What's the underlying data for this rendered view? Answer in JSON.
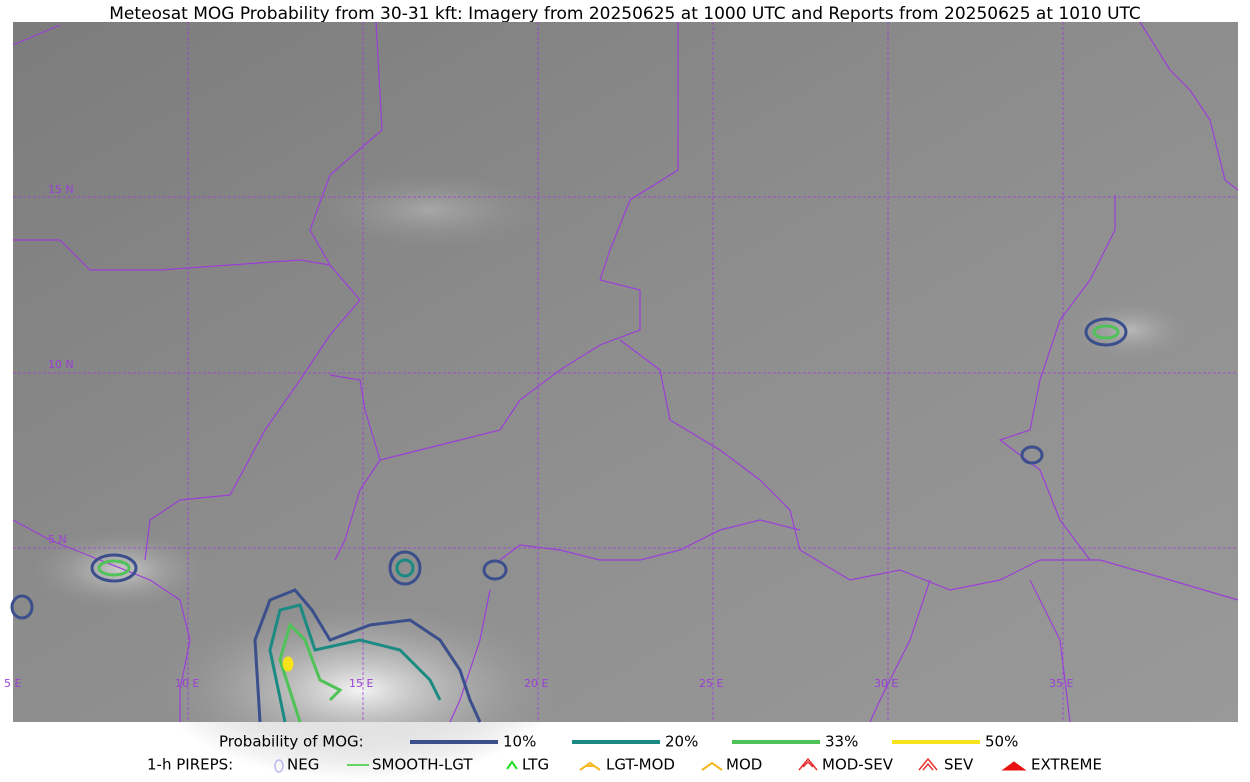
{
  "title": "Meteosat MOG Probability from 30-31 kft: Imagery from 20250625 at 1000 UTC and Reports from 20250625 at 1010 UTC",
  "map": {
    "lat_labels": [
      "15 N",
      "10 N",
      "5 N"
    ],
    "lon_labels": [
      "5 E",
      "10 E",
      "15 E",
      "20 E",
      "25 E",
      "30 E",
      "35 E"
    ]
  },
  "legend": {
    "probability": {
      "title": "Probability of MOG:",
      "items": [
        {
          "label": "10%",
          "color": "#3a4f8c"
        },
        {
          "label": "20%",
          "color": "#1b8a82"
        },
        {
          "label": "33%",
          "color": "#4fc258"
        },
        {
          "label": "50%",
          "color": "#f7e31b"
        }
      ]
    },
    "pireps": {
      "title": "1-h PIREPS:",
      "items": [
        {
          "label": "NEG",
          "color": "#b8b8f0"
        },
        {
          "label": "SMOOTH-LGT",
          "color": "#33cc33"
        },
        {
          "label": "LTG",
          "color": "#22dd22"
        },
        {
          "label": "LGT-MOD",
          "color": "#f5b820"
        },
        {
          "label": "MOD",
          "color": "#f5b820"
        },
        {
          "label": "MOD-SEV",
          "color": "#e83030"
        },
        {
          "label": "SEV",
          "color": "#e83030"
        },
        {
          "label": "EXTREME",
          "color": "#e81010"
        }
      ]
    }
  }
}
